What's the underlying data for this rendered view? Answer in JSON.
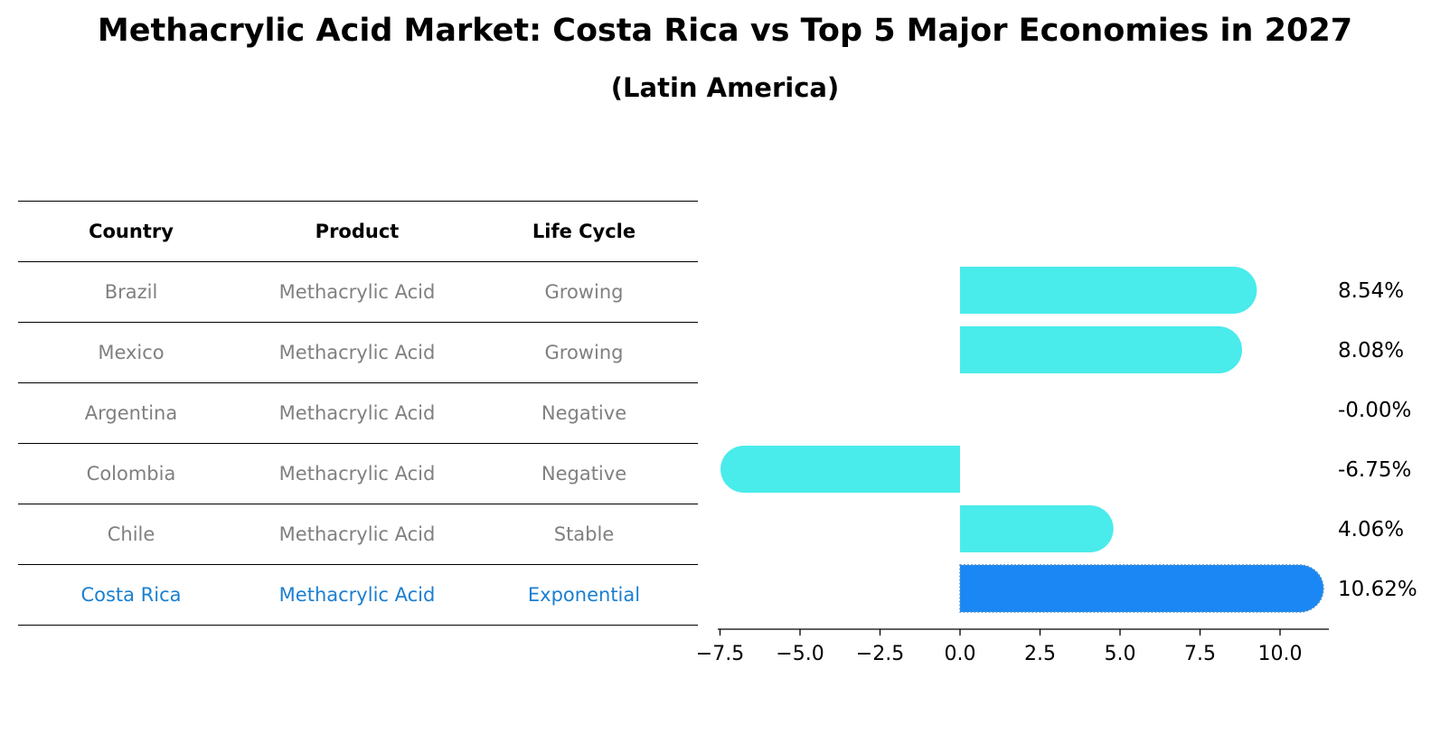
{
  "title": "Methacrylic Acid Market: Costa Rica vs Top 5 Major Economies in 2027",
  "subtitle": "(Latin America)",
  "table": {
    "headers": [
      "Country",
      "Product",
      "Life Cycle"
    ],
    "rows": [
      {
        "country": "Brazil",
        "product": "Methacrylic Acid",
        "life_cycle": "Growing"
      },
      {
        "country": "Mexico",
        "product": "Methacrylic Acid",
        "life_cycle": "Growing"
      },
      {
        "country": "Argentina",
        "product": "Methacrylic Acid",
        "life_cycle": "Negative"
      },
      {
        "country": "Colombia",
        "product": "Methacrylic Acid",
        "life_cycle": "Negative"
      },
      {
        "country": "Chile",
        "product": "Methacrylic Acid",
        "life_cycle": "Stable"
      },
      {
        "country": "Costa Rica",
        "product": "Methacrylic Acid",
        "life_cycle": "Exponential"
      }
    ]
  },
  "colors": {
    "bar": "#4aebeb",
    "highlight": "#1a87f5",
    "highlight_text": "#1a7fd1",
    "muted_text": "#808080"
  },
  "chart_data": {
    "type": "bar",
    "orientation": "horizontal",
    "categories": [
      "Brazil",
      "Mexico",
      "Argentina",
      "Colombia",
      "Chile",
      "Costa Rica"
    ],
    "values": [
      8.54,
      8.08,
      -0.0,
      -6.75,
      4.06,
      10.62
    ],
    "value_labels": [
      "8.54%",
      "8.08%",
      "-0.00%",
      "-6.75%",
      "4.06%",
      "10.62%"
    ],
    "highlight": "Costa Rica",
    "xlim": [
      -7.5,
      11.5
    ],
    "xticks": [
      -7.5,
      -5.0,
      -2.5,
      0.0,
      2.5,
      5.0,
      7.5,
      10.0
    ],
    "xtick_labels": [
      "−7.5",
      "−5.0",
      "−2.5",
      "0.0",
      "2.5",
      "5.0",
      "7.5",
      "10.0"
    ],
    "title": "Methacrylic Acid Market: Costa Rica vs Top 5 Major Economies in 2027",
    "xlabel": "",
    "ylabel": ""
  }
}
